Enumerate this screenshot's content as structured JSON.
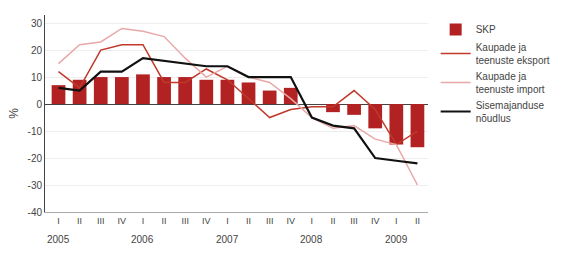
{
  "chart_data": {
    "type": "bar",
    "categories": [
      "I",
      "II",
      "III",
      "IV",
      "I",
      "II",
      "III",
      "IV",
      "I",
      "II",
      "III",
      "IV",
      "I",
      "II",
      "III",
      "IV",
      "I",
      "II"
    ],
    "series": [
      {
        "name": "SKP",
        "type": "bar",
        "color": "#b22222",
        "values": [
          7,
          9,
          10,
          10,
          11,
          10,
          10,
          9,
          9,
          8,
          5,
          6,
          0,
          -3,
          -4,
          -9,
          -15,
          -16
        ]
      },
      {
        "name": "Kaupade ja\nteenuste eksport",
        "type": "line",
        "color": "#c0392b",
        "values": [
          12,
          6,
          20,
          22,
          22,
          8,
          8,
          13,
          9,
          2,
          -5,
          -2,
          -1,
          -1,
          5,
          -2,
          -15,
          -10
        ]
      },
      {
        "name": "Kaupade ja\nteenuste import",
        "type": "line",
        "color": "#e8a8a8",
        "values": [
          15,
          22,
          23,
          28,
          27,
          25,
          17,
          10,
          14,
          10,
          8,
          2,
          -5,
          -9,
          -8,
          -13,
          -15,
          -30
        ]
      },
      {
        "name": "Sisemajanduse\nnõudlus",
        "type": "line",
        "color": "#111111",
        "values": [
          6,
          5,
          12,
          12,
          17,
          16,
          15,
          14,
          14,
          10,
          10,
          10,
          -5,
          -8,
          -9,
          -20,
          -21,
          -22
        ]
      }
    ],
    "ylabel": "%",
    "ylim": [
      -40,
      33
    ],
    "yticks": [
      -40,
      -30,
      -20,
      -10,
      0,
      10,
      20,
      30
    ],
    "grid": true,
    "legend": "right",
    "annotations": [
      {
        "text": "2005",
        "x": 0
      },
      {
        "text": "2006",
        "x": 4
      },
      {
        "text": "2007",
        "x": 8
      },
      {
        "text": "2008",
        "x": 12
      },
      {
        "text": "2009",
        "x": 16
      }
    ]
  }
}
